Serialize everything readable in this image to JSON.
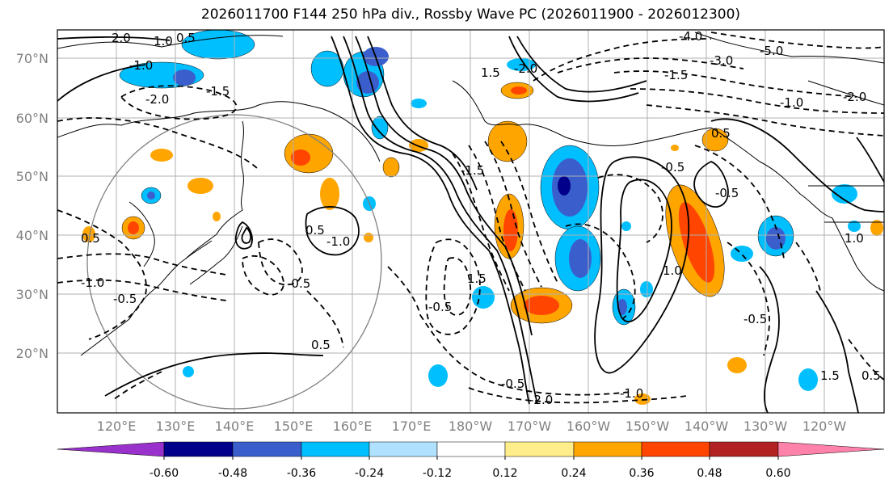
{
  "title": "2026011700 F144 250 hPa div., Rossby Wave PC (2026011900 - 2026012300)",
  "lat_labels": [
    "70°N",
    "60°N",
    "50°N",
    "40°N",
    "30°N",
    "20°N"
  ],
  "lon_labels": [
    "120°E",
    "130°E",
    "140°E",
    "150°E",
    "160°E",
    "170°E",
    "180°W",
    "170°W",
    "160°W",
    "150°W",
    "140°W",
    "130°W",
    "120°W"
  ],
  "contour_labels": [
    "2.0",
    "1.0",
    "0.5",
    "-1.0",
    "-2.0",
    "-1.5",
    "1.5",
    "-2.0",
    "-4.0",
    "-3.0",
    "-5.0",
    "-1.5",
    "-1.0",
    "-2.0",
    "0.5",
    "-1.5",
    "-0.5",
    "-0.5",
    "0.5",
    "-1.0",
    "-0.5",
    "0.5",
    "-0.5",
    "1.5",
    "-0.5",
    "-1.0",
    "0.5",
    "-2.0",
    "-1.0",
    "-0.5",
    "1.0",
    "1.0",
    "-0.5",
    "0.5",
    "1.5"
  ],
  "colorbar": {
    "ticks": [
      "-0.60",
      "-0.48",
      "-0.36",
      "-0.24",
      "-0.12",
      "0.12",
      "0.24",
      "0.36",
      "0.48",
      "0.60"
    ],
    "colors": [
      "#9932cc",
      "#00008b",
      "#3a5fcd",
      "#00bfff",
      "#b0e2ff",
      "#ffffff",
      "#ffec8b",
      "#ffa500",
      "#ff4500",
      "#b22222",
      "#ff82ab"
    ]
  }
}
